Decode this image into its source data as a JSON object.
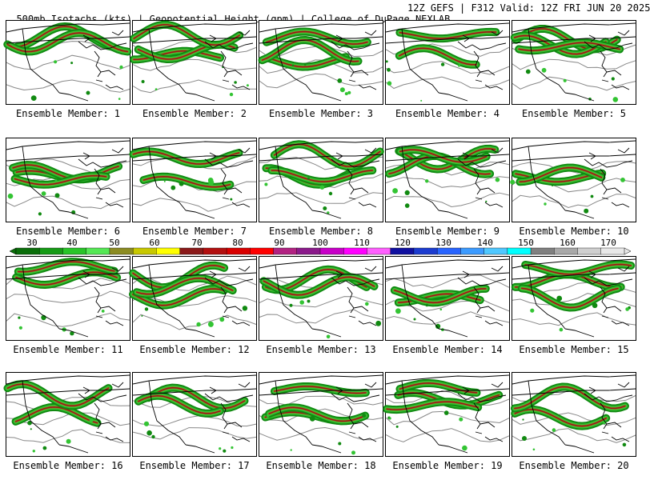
{
  "header": {
    "left": "500mb Isotachs (kts) | Geopotential Height (gpm) | College of DuPage NEXLAB",
    "right": "12Z GEFS | F312 Valid: 12Z FRI JUN 20 2025"
  },
  "colorbar": {
    "labels": [
      "30",
      "40",
      "50",
      "60",
      "70",
      "80",
      "90",
      "100",
      "110",
      "120",
      "130",
      "140",
      "150",
      "160",
      "170"
    ],
    "colors": [
      "#0a6e0a",
      "#169b16",
      "#28c428",
      "#55e855",
      "#8c8c23",
      "#c8c800",
      "#ffff00",
      "#8b1a1a",
      "#b31010",
      "#d90000",
      "#ff0000",
      "#b22282",
      "#8b1a8b",
      "#c800c8",
      "#ff00ff",
      "#ff5fff",
      "#1010a0",
      "#1c3cd0",
      "#2864ff",
      "#3c9bff",
      "#50c8ff",
      "#00ffff",
      "#808080",
      "#a8a8a8",
      "#cfcfcf",
      "#e8e8e8"
    ]
  },
  "members": [
    {
      "label": "Ensemble Member: 1"
    },
    {
      "label": "Ensemble Member: 2"
    },
    {
      "label": "Ensemble Member: 3"
    },
    {
      "label": "Ensemble Member: 4"
    },
    {
      "label": "Ensemble Member: 5"
    },
    {
      "label": "Ensemble Member: 6"
    },
    {
      "label": "Ensemble Member: 7"
    },
    {
      "label": "Ensemble Member: 8"
    },
    {
      "label": "Ensemble Member: 9"
    },
    {
      "label": "Ensemble Member: 10"
    },
    {
      "label": "Ensemble Member: 11"
    },
    {
      "label": "Ensemble Member: 12"
    },
    {
      "label": "Ensemble Member: 13"
    },
    {
      "label": "Ensemble Member: 14"
    },
    {
      "label": "Ensemble Member: 15"
    },
    {
      "label": "Ensemble Member: 16"
    },
    {
      "label": "Ensemble Member: 17"
    },
    {
      "label": "Ensemble Member: 18"
    },
    {
      "label": "Ensemble Member: 19"
    },
    {
      "label": "Ensemble Member: 20"
    }
  ],
  "style": {
    "jet_colors": [
      "#118a11",
      "#33c433",
      "#86862a",
      "#9b1515"
    ],
    "contour_color": "#888888",
    "coast_color": "#000000"
  }
}
